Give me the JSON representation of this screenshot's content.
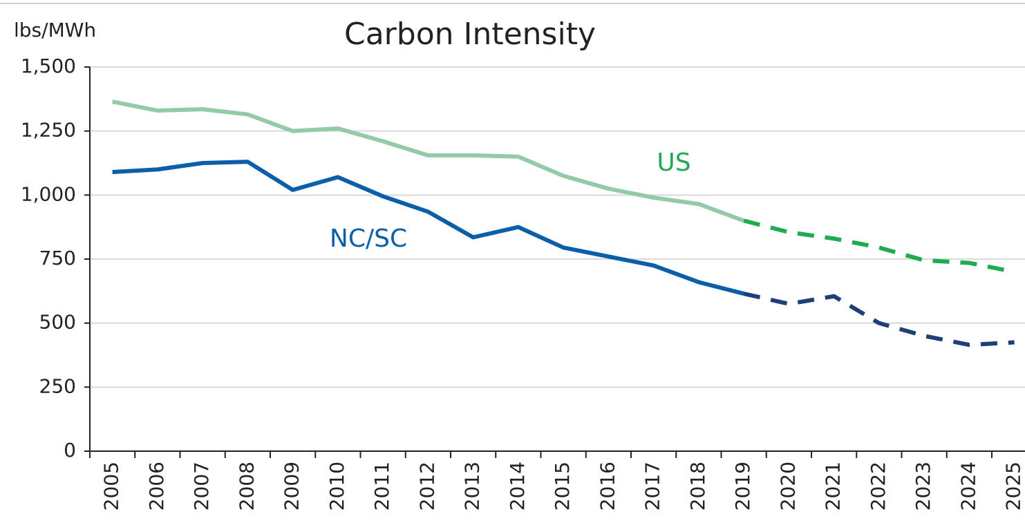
{
  "chart_data": {
    "type": "line",
    "title": "Carbon Intensity",
    "y_label": "lbs/MWh",
    "categories": [
      "2005",
      "2006",
      "2007",
      "2008",
      "2009",
      "2010",
      "2011",
      "2012",
      "2013",
      "2014",
      "2015",
      "2016",
      "2017",
      "2018",
      "2019",
      "2020",
      "2021",
      "2022",
      "2023",
      "2024",
      "2025"
    ],
    "series": [
      {
        "name": "US",
        "color": "#93cba9",
        "dash_color": "#1fab52",
        "dash_from_index": 14,
        "values": [
          1365,
          1330,
          1335,
          1315,
          1250,
          1260,
          1210,
          1155,
          1155,
          1150,
          1075,
          1025,
          990,
          965,
          900,
          855,
          830,
          795,
          745,
          735,
          700
        ]
      },
      {
        "name": "NC/SC",
        "color": "#0b5ea8",
        "dash_color": "#1f3f78",
        "dash_from_index": 14,
        "values": [
          1090,
          1100,
          1125,
          1130,
          1020,
          1070,
          995,
          935,
          835,
          875,
          795,
          760,
          725,
          660,
          615,
          575,
          605,
          500,
          450,
          415,
          425
        ]
      }
    ],
    "ylim": [
      0,
      1500
    ],
    "yticks": [
      0,
      250,
      500,
      750,
      {
        "value": 1000,
        "label": "1,000"
      },
      {
        "value": 1250,
        "label": "1,250"
      },
      {
        "value": 1500,
        "label": "1,500"
      }
    ],
    "grid": true
  }
}
